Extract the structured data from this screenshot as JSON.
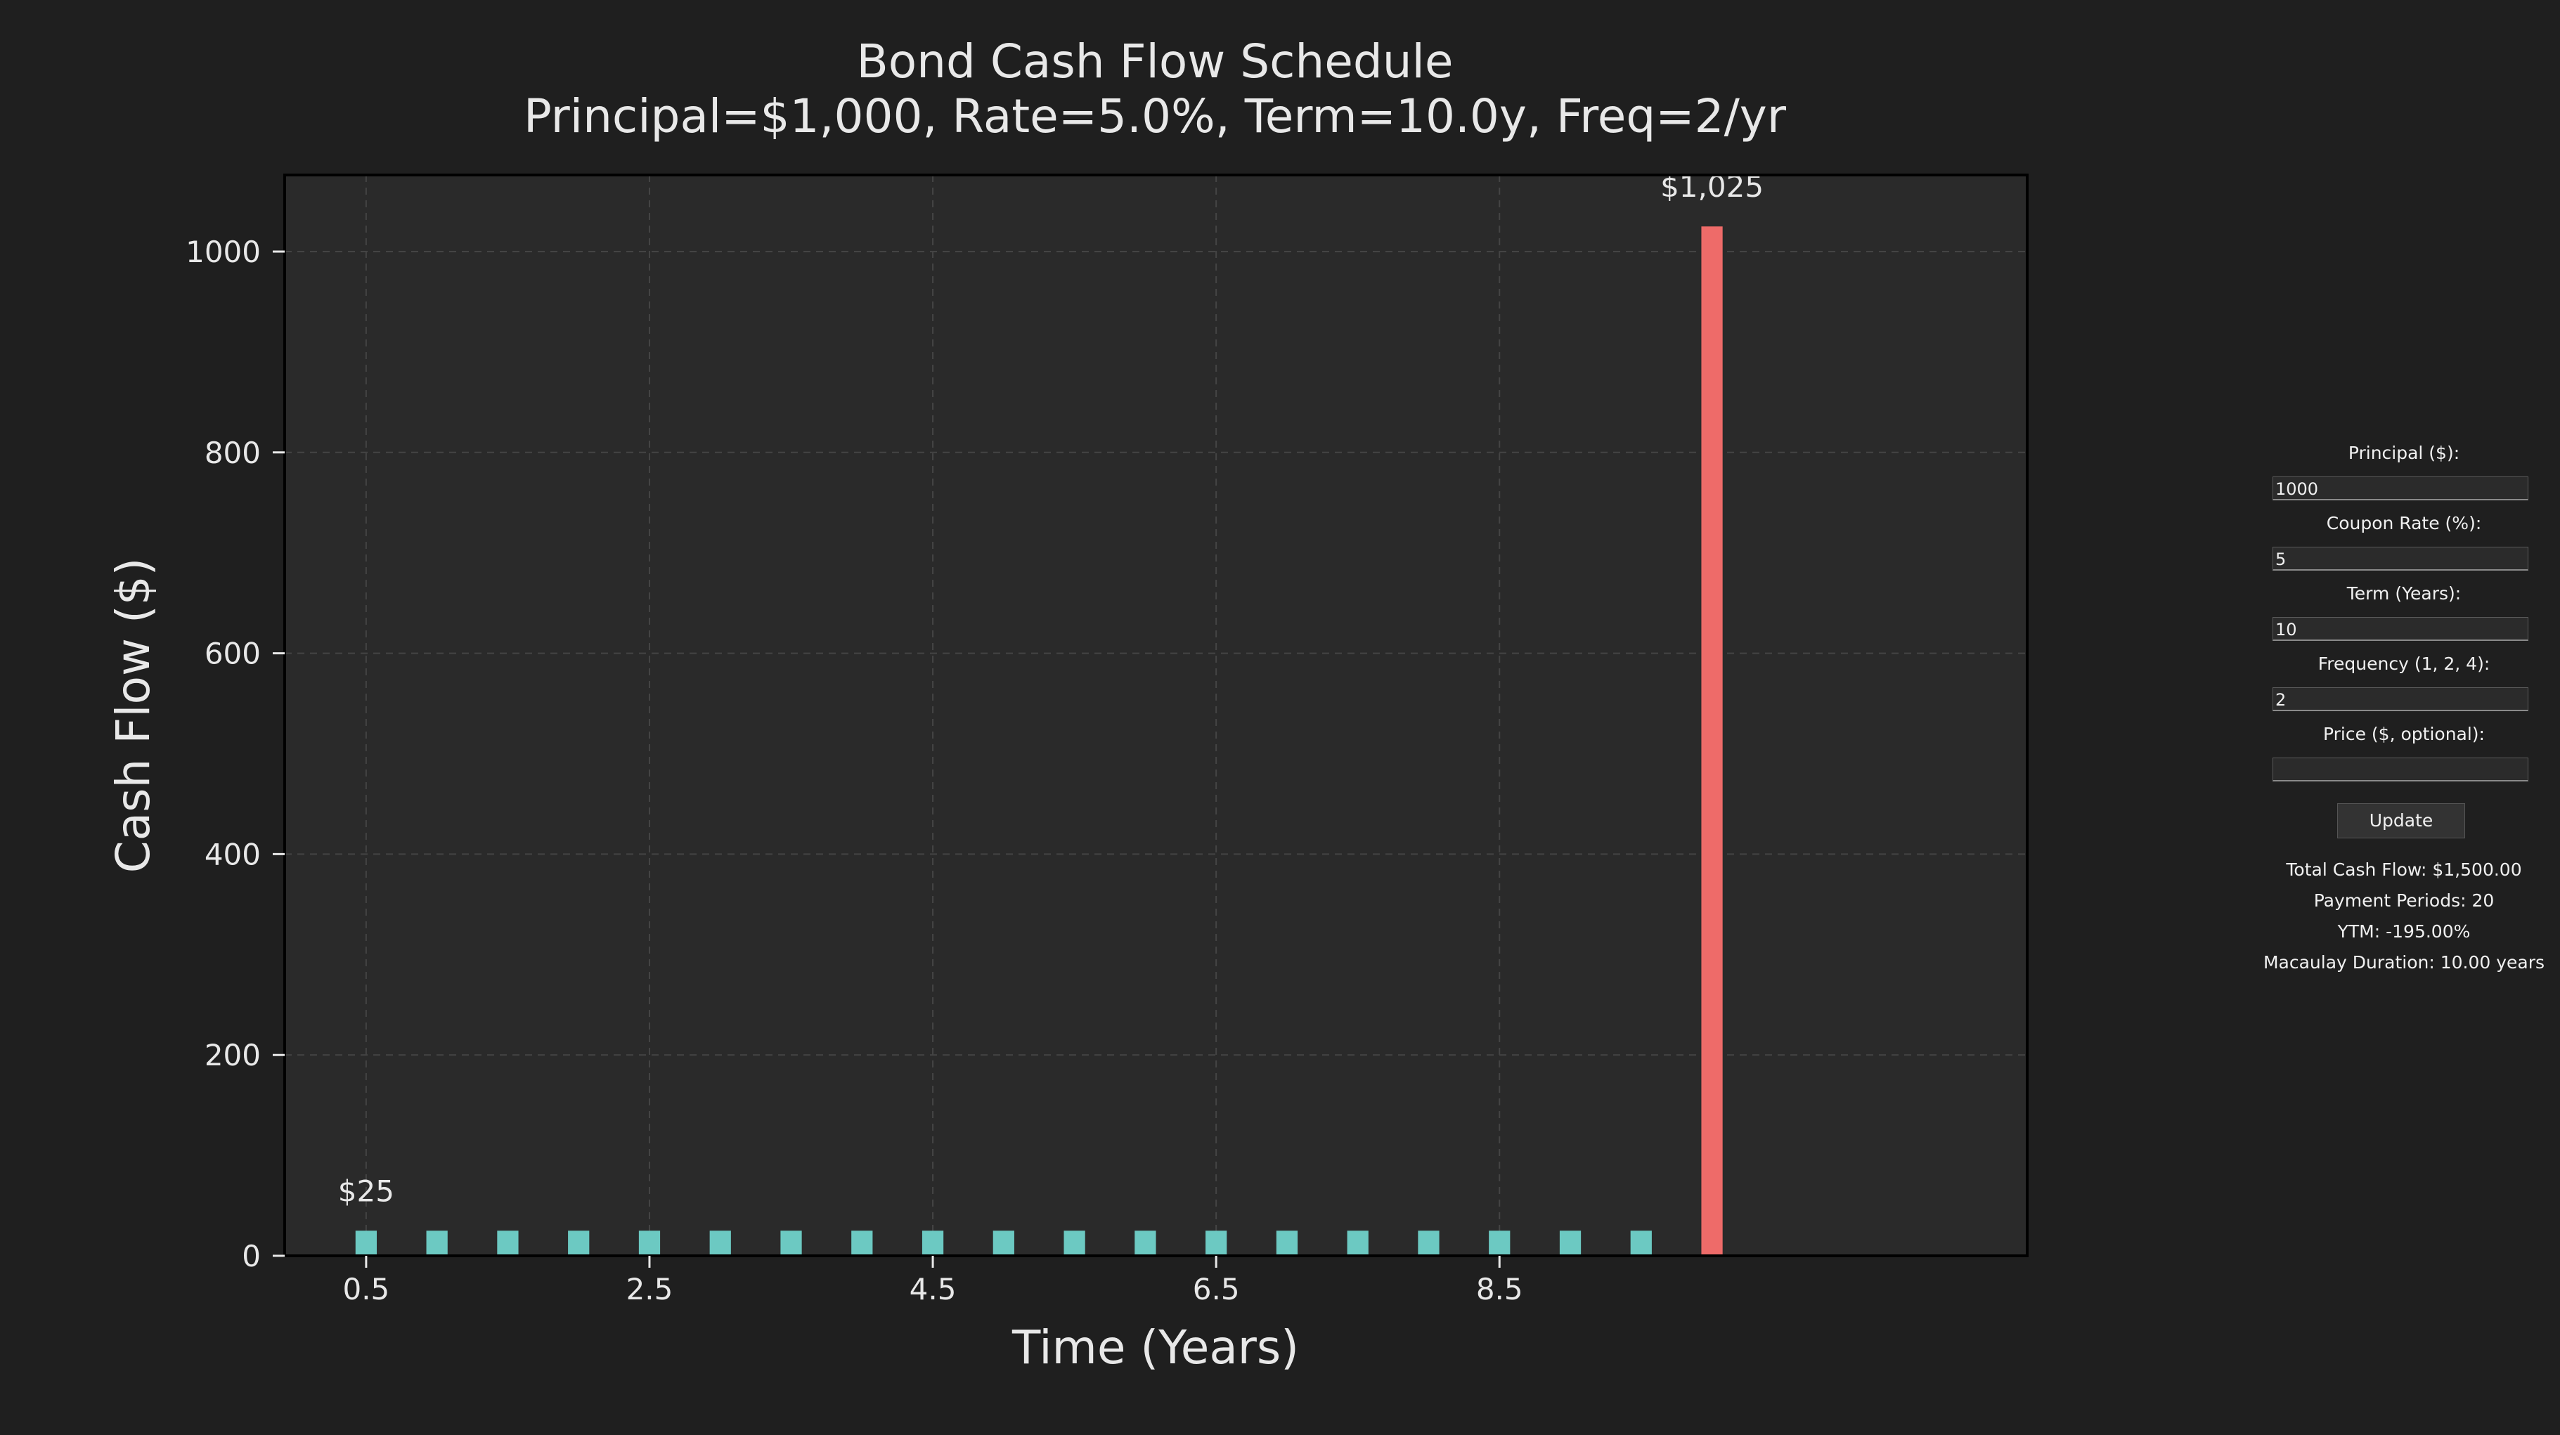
{
  "chart_data": {
    "type": "bar",
    "title": "Bond Cash Flow Schedule",
    "subtitle": "Principal=$1,000, Rate=5.0%, Term=10.0y, Freq=2/yr",
    "xlabel": "Time (Years)",
    "ylabel": "Cash Flow ($)",
    "xlim": [
      -0.075,
      12.225
    ],
    "ylim": [
      0,
      1076.25
    ],
    "x_ticks": [
      0.5,
      2.5,
      4.5,
      6.5,
      8.5
    ],
    "x_tick_labels": [
      "0.5",
      "2.5",
      "4.5",
      "6.5",
      "8.5"
    ],
    "y_ticks": [
      0,
      200,
      400,
      600,
      800,
      1000
    ],
    "y_tick_labels": [
      "0",
      "200",
      "400",
      "600",
      "800",
      "1000"
    ],
    "grid": true,
    "x": [
      0.5,
      1.0,
      1.5,
      2.0,
      2.5,
      3.0,
      3.5,
      4.0,
      4.5,
      5.0,
      5.5,
      6.0,
      6.5,
      7.0,
      7.5,
      8.0,
      8.5,
      9.0,
      9.5,
      10.0
    ],
    "values": [
      25,
      25,
      25,
      25,
      25,
      25,
      25,
      25,
      25,
      25,
      25,
      25,
      25,
      25,
      25,
      25,
      25,
      25,
      25,
      1025
    ],
    "colors": {
      "coupon": "#6cc9c2",
      "final": "#ee6b69",
      "axes_bg": "#2a2a2a",
      "figure_bg": "#1f1f1f",
      "grid": "#444444",
      "text": "#e8e8e8"
    },
    "annotations": [
      {
        "x": 0.5,
        "y": 25,
        "text": "$25"
      },
      {
        "x": 10.0,
        "y": 1025,
        "text": "$1,025"
      }
    ]
  },
  "controls": {
    "principal_label": "Principal ($):",
    "principal_value": "1000",
    "coupon_label": "Coupon Rate (%):",
    "coupon_value": "5",
    "term_label": "Term (Years):",
    "term_value": "10",
    "frequency_label": "Frequency (1, 2, 4):",
    "frequency_value": "2",
    "price_label": "Price ($, optional):",
    "price_value": "",
    "update_label": "Update"
  },
  "stats": {
    "total_cash_flow": "Total Cash Flow: $1,500.00",
    "payment_periods": "Payment Periods: 20",
    "ytm": "YTM: -195.00%",
    "duration": "Macaulay Duration: 10.00 years"
  }
}
